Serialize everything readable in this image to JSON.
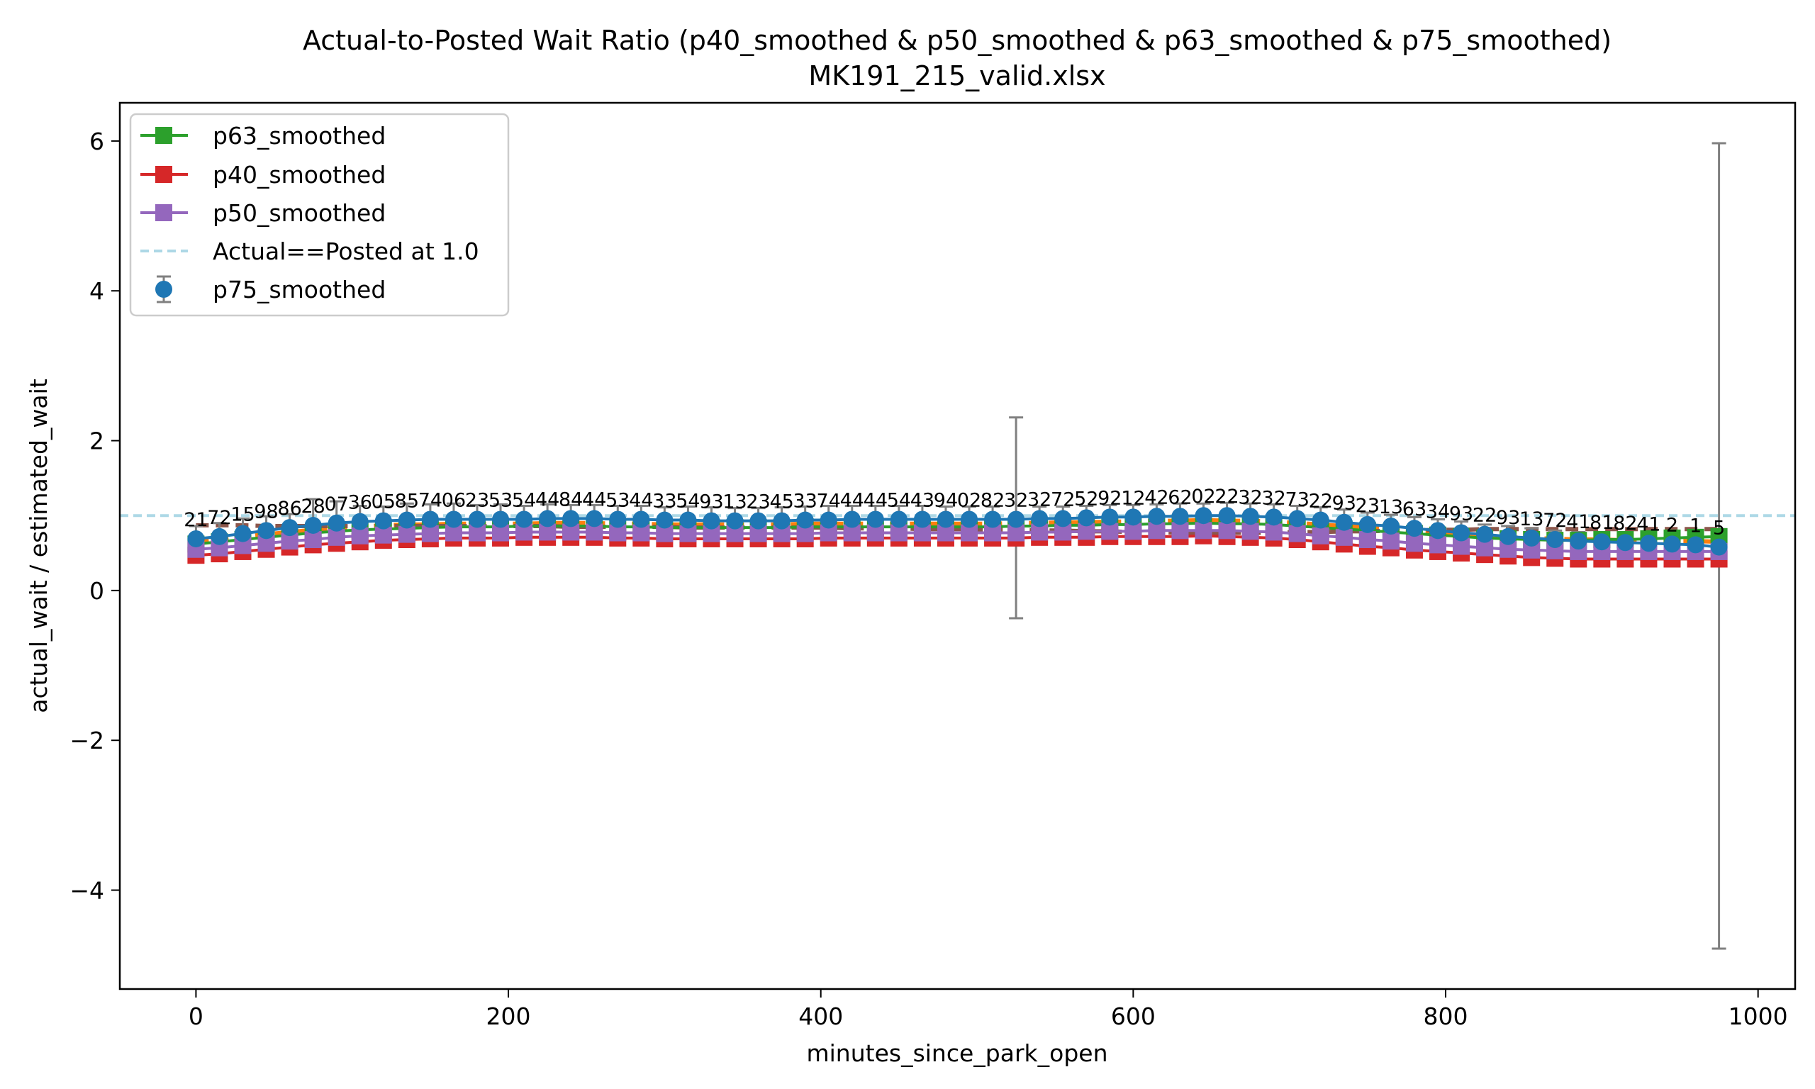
{
  "chart_data": {
    "type": "line",
    "title": "Actual-to-Posted Wait Ratio (p40_smoothed & p50_smoothed & p63_smoothed & p75_smoothed)",
    "subtitle": "MK191_215_valid.xlsx",
    "xlabel": "minutes_since_park_open",
    "ylabel": "actual_wait / estimated_wait",
    "xlim": [
      -48.75,
      1023.75
    ],
    "ylim": [
      -5.32,
      6.51
    ],
    "xticks": [
      0,
      200,
      400,
      600,
      800,
      1000
    ],
    "yticks": [
      -4,
      -2,
      0,
      2,
      4,
      6
    ],
    "ytick_labels": [
      "−4",
      "−2",
      "0",
      "2",
      "4",
      "6"
    ],
    "grid": false,
    "legend_position": "top-left",
    "reference_line": {
      "label": "Actual==Posted at 1.0",
      "y": 1.0,
      "color": "#add8e6",
      "style": "dashed"
    },
    "x": [
      0,
      15,
      30,
      45,
      60,
      75,
      90,
      105,
      120,
      135,
      150,
      165,
      180,
      195,
      210,
      225,
      240,
      255,
      270,
      285,
      300,
      315,
      330,
      345,
      360,
      375,
      390,
      405,
      420,
      435,
      450,
      465,
      480,
      495,
      510,
      525,
      540,
      555,
      570,
      585,
      600,
      615,
      630,
      645,
      660,
      675,
      690,
      705,
      720,
      735,
      750,
      765,
      780,
      795,
      810,
      825,
      840,
      855,
      870,
      885,
      900,
      915,
      930,
      945,
      960,
      975
    ],
    "series": [
      {
        "name": "p63_smoothed",
        "color": "#2ca02c",
        "marker": "square",
        "in_legend": true,
        "values": [
          0.62,
          0.65,
          0.68,
          0.71,
          0.74,
          0.77,
          0.79,
          0.81,
          0.82,
          0.83,
          0.84,
          0.85,
          0.85,
          0.85,
          0.86,
          0.86,
          0.86,
          0.86,
          0.85,
          0.85,
          0.84,
          0.84,
          0.84,
          0.84,
          0.84,
          0.84,
          0.85,
          0.85,
          0.85,
          0.85,
          0.85,
          0.85,
          0.85,
          0.85,
          0.85,
          0.86,
          0.86,
          0.87,
          0.87,
          0.88,
          0.88,
          0.89,
          0.89,
          0.9,
          0.89,
          0.89,
          0.88,
          0.86,
          0.84,
          0.82,
          0.8,
          0.78,
          0.76,
          0.74,
          0.72,
          0.7,
          0.69,
          0.68,
          0.67,
          0.67,
          0.68,
          0.68,
          0.69,
          0.7,
          0.71,
          0.72
        ]
      },
      {
        "name": "p40_smoothed",
        "color": "#d62728",
        "marker": "square",
        "in_legend": true,
        "values": [
          0.47,
          0.49,
          0.52,
          0.55,
          0.58,
          0.61,
          0.63,
          0.65,
          0.67,
          0.68,
          0.69,
          0.7,
          0.7,
          0.7,
          0.71,
          0.71,
          0.71,
          0.71,
          0.7,
          0.7,
          0.69,
          0.69,
          0.69,
          0.69,
          0.69,
          0.69,
          0.69,
          0.7,
          0.7,
          0.7,
          0.7,
          0.7,
          0.7,
          0.7,
          0.7,
          0.7,
          0.71,
          0.71,
          0.71,
          0.72,
          0.72,
          0.72,
          0.72,
          0.73,
          0.72,
          0.71,
          0.7,
          0.68,
          0.65,
          0.62,
          0.59,
          0.57,
          0.54,
          0.52,
          0.5,
          0.48,
          0.46,
          0.44,
          0.43,
          0.42,
          0.42,
          0.42,
          0.42,
          0.42,
          0.42,
          0.42
        ]
      },
      {
        "name": "p50_smoothed",
        "color": "#9467bd",
        "marker": "square",
        "in_legend": true,
        "values": [
          0.55,
          0.57,
          0.6,
          0.63,
          0.66,
          0.68,
          0.71,
          0.73,
          0.74,
          0.75,
          0.76,
          0.77,
          0.77,
          0.77,
          0.78,
          0.78,
          0.78,
          0.78,
          0.77,
          0.77,
          0.76,
          0.76,
          0.76,
          0.76,
          0.76,
          0.76,
          0.76,
          0.77,
          0.77,
          0.77,
          0.77,
          0.77,
          0.77,
          0.77,
          0.77,
          0.77,
          0.78,
          0.78,
          0.79,
          0.79,
          0.79,
          0.8,
          0.8,
          0.8,
          0.8,
          0.79,
          0.78,
          0.76,
          0.73,
          0.71,
          0.68,
          0.66,
          0.63,
          0.61,
          0.59,
          0.57,
          0.55,
          0.54,
          0.53,
          0.52,
          0.52,
          0.52,
          0.52,
          0.52,
          0.52,
          0.52
        ]
      },
      {
        "name": "p75_smoothed",
        "color": "#1f77b4",
        "marker": "circle",
        "in_legend": true,
        "errorbar_color": "#808080",
        "values": [
          0.69,
          0.72,
          0.76,
          0.8,
          0.84,
          0.87,
          0.9,
          0.92,
          0.93,
          0.94,
          0.95,
          0.95,
          0.95,
          0.95,
          0.95,
          0.96,
          0.96,
          0.96,
          0.95,
          0.95,
          0.94,
          0.94,
          0.93,
          0.93,
          0.93,
          0.93,
          0.94,
          0.94,
          0.95,
          0.95,
          0.95,
          0.95,
          0.95,
          0.95,
          0.95,
          0.95,
          0.96,
          0.96,
          0.97,
          0.98,
          0.98,
          0.99,
          0.99,
          1.0,
          1.0,
          0.99,
          0.98,
          0.96,
          0.94,
          0.91,
          0.88,
          0.86,
          0.83,
          0.8,
          0.77,
          0.75,
          0.72,
          0.7,
          0.68,
          0.66,
          0.65,
          0.64,
          0.63,
          0.62,
          0.61,
          0.58
        ],
        "err_low": [
          0.6,
          0.62,
          0.66,
          0.7,
          0.74,
          0.53,
          0.8,
          0.82,
          0.83,
          0.84,
          0.85,
          0.85,
          0.85,
          0.85,
          0.85,
          0.86,
          0.86,
          0.86,
          0.85,
          0.85,
          0.84,
          0.84,
          0.83,
          0.83,
          0.83,
          0.83,
          0.84,
          0.84,
          0.85,
          0.85,
          0.85,
          0.85,
          0.85,
          0.85,
          0.85,
          -0.37,
          0.86,
          0.86,
          0.87,
          0.88,
          0.88,
          0.89,
          0.89,
          0.9,
          0.9,
          0.89,
          0.88,
          0.86,
          0.84,
          0.81,
          0.78,
          0.76,
          0.73,
          0.7,
          0.67,
          0.65,
          0.62,
          0.6,
          0.58,
          0.56,
          0.55,
          0.54,
          0.53,
          0.52,
          0.51,
          -4.78
        ],
        "err_high": [
          0.86,
          0.9,
          0.96,
          0.99,
          1.02,
          1.22,
          1.19,
          1.13,
          1.12,
          1.16,
          1.15,
          1.16,
          1.14,
          1.15,
          1.13,
          1.15,
          1.14,
          1.14,
          1.13,
          1.13,
          1.11,
          1.12,
          1.11,
          1.1,
          1.1,
          1.11,
          1.12,
          1.13,
          1.13,
          1.13,
          1.13,
          1.13,
          1.12,
          1.12,
          1.12,
          2.31,
          1.12,
          1.12,
          1.13,
          1.14,
          1.14,
          1.15,
          1.16,
          1.16,
          1.17,
          1.16,
          1.15,
          1.13,
          1.11,
          1.08,
          1.04,
          1.01,
          0.98,
          0.95,
          0.92,
          0.88,
          0.86,
          0.83,
          0.8,
          0.78,
          0.76,
          0.74,
          0.72,
          0.7,
          0.68,
          5.97
        ]
      },
      {
        "name": "unlabeled_orange",
        "color": "#ff7f0e",
        "style": "dashed",
        "in_legend": false,
        "values": [
          0.66,
          0.69,
          0.72,
          0.75,
          0.78,
          0.81,
          0.83,
          0.85,
          0.87,
          0.88,
          0.88,
          0.89,
          0.89,
          0.89,
          0.89,
          0.9,
          0.9,
          0.9,
          0.89,
          0.89,
          0.88,
          0.88,
          0.88,
          0.88,
          0.88,
          0.88,
          0.89,
          0.89,
          0.89,
          0.89,
          0.89,
          0.89,
          0.89,
          0.89,
          0.89,
          0.9,
          0.9,
          0.91,
          0.91,
          0.92,
          0.92,
          0.93,
          0.93,
          0.94,
          0.93,
          0.93,
          0.92,
          0.9,
          0.88,
          0.86,
          0.84,
          0.81,
          0.79,
          0.77,
          0.75,
          0.73,
          0.71,
          0.7,
          0.69,
          0.68,
          0.68,
          0.67,
          0.67,
          0.66,
          0.66,
          0.65
        ]
      },
      {
        "name": "unlabeled_brown",
        "color": "#8c564b",
        "style": "dashed",
        "in_legend": false,
        "values": [
          0.87,
          0.87,
          0.87,
          0.86,
          0.86,
          0.86,
          0.86,
          0.86,
          0.86,
          0.86,
          0.86,
          0.86,
          0.86,
          0.86,
          0.86,
          0.86,
          0.85,
          0.85,
          0.85,
          0.85,
          0.85,
          0.84,
          0.84,
          0.84,
          0.84,
          0.84,
          0.84,
          0.84,
          0.83,
          0.83,
          0.83,
          0.82,
          0.82,
          0.82,
          0.81,
          0.81,
          0.8,
          0.8,
          0.79,
          0.79,
          0.78,
          0.78,
          0.77,
          0.77,
          0.77,
          0.77,
          0.77,
          0.78,
          0.78,
          0.79,
          0.79,
          0.8,
          0.8,
          0.81,
          0.81,
          0.82,
          0.82,
          0.82,
          0.82,
          0.82,
          0.82,
          0.82,
          0.82,
          0.82,
          0.82,
          0.82
        ]
      }
    ],
    "annotations": [
      "21",
      "72",
      "15",
      "98",
      "86",
      "28",
      "07",
      "36",
      "05",
      "85",
      "74",
      "06",
      "23",
      "53",
      "54",
      "44",
      "84",
      "44",
      "53",
      "44",
      "33",
      "54",
      "93",
      "13",
      "23",
      "45",
      "33",
      "74",
      "44",
      "44",
      "54",
      "43",
      "94",
      "02",
      "82",
      "32",
      "32",
      "72",
      "52",
      "92",
      "12",
      "42",
      "62",
      "02",
      "22",
      "32",
      "32",
      "73",
      "22",
      "93",
      "23",
      "13",
      "63",
      "34",
      "93",
      "22",
      "93",
      "13",
      "72",
      "41",
      "81",
      "82",
      "41",
      "2",
      "1",
      "5"
    ]
  }
}
